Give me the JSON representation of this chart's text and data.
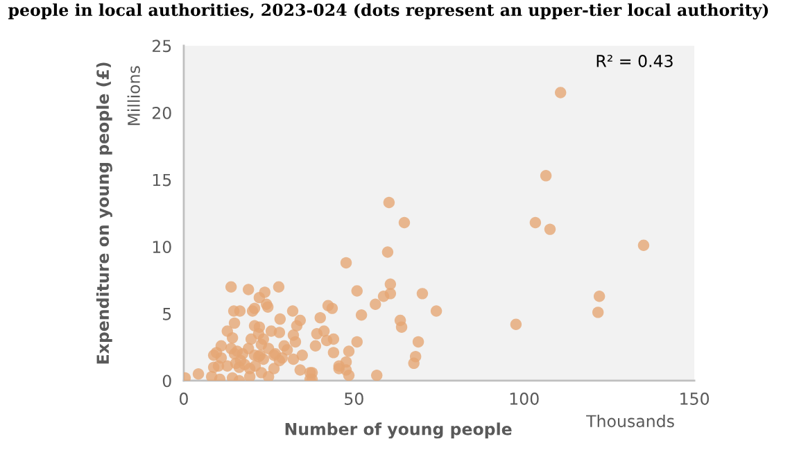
{
  "chart_data": {
    "type": "scatter",
    "title": "people in local authorities, 2023-024 (dots represent an upper-tier local authority)",
    "xlabel": "Number of young people",
    "ylabel": "Expenditure on young people (£)",
    "annotations": [
      "Thousands",
      "Millions",
      "R² = 0.43"
    ],
    "xlim": [
      0,
      150
    ],
    "xticks": [
      0,
      50,
      100,
      150
    ],
    "ylim": [
      0,
      25
    ],
    "yticks": [
      0,
      5,
      10,
      15,
      20,
      25
    ],
    "grid": false,
    "marker": "circle",
    "series": [
      {
        "color": "#e5a674",
        "x": [
          110.7,
          106.4,
          103.3,
          107.6,
          135.1,
          122.1,
          121.7,
          97.6,
          60.3,
          64.8,
          59.9,
          47.7,
          60.7,
          60.7,
          58.7,
          50.9,
          70.1,
          56.3,
          74.2,
          52.2,
          63.6,
          64.0,
          68.9,
          68.1,
          67.6,
          56.7,
          50.9,
          48.5,
          47.7,
          45.6,
          48.5,
          40.1,
          42.4,
          43.6,
          39.1,
          41.2,
          38.7,
          42.0,
          44.0,
          44.0,
          45.6,
          47.7,
          37.7,
          37.7,
          13.9,
          19.0,
          23.8,
          27.9,
          22.2,
          24.3,
          24.7,
          14.7,
          16.5,
          20.2,
          20.8,
          32.0,
          14.9,
          28.3,
          33.2,
          34.2,
          20.8,
          22.2,
          12.8,
          25.7,
          28.1,
          14.3,
          19.8,
          22.0,
          32.2,
          32.8,
          11.0,
          9.6,
          8.8,
          11.0,
          13.9,
          15.7,
          17.3,
          19.0,
          22.8,
          23.4,
          24.9,
          26.9,
          28.9,
          22.0,
          23.4,
          29.5,
          30.4,
          32.2,
          34.8,
          8.8,
          10.2,
          12.8,
          15.3,
          16.3,
          17.9,
          19.4,
          21.0,
          22.8,
          24.9,
          26.5,
          28.1,
          8.2,
          4.3,
          0.4,
          10.6,
          14.3,
          16.3,
          19.4,
          34.2,
          37.1,
          37.1,
          14.9,
          16.7,
          22.4,
          20.8,
          26.5
        ],
        "values": [
          21.5,
          15.3,
          11.8,
          11.3,
          10.1,
          6.3,
          5.1,
          4.2,
          13.3,
          11.8,
          9.6,
          8.8,
          7.2,
          6.5,
          6.3,
          6.7,
          6.5,
          5.7,
          5.2,
          4.9,
          4.5,
          4.0,
          2.9,
          1.8,
          1.3,
          0.4,
          2.9,
          2.2,
          1.4,
          0.9,
          0.4,
          4.7,
          5.6,
          5.4,
          3.5,
          3.7,
          2.6,
          3.0,
          3.1,
          2.1,
          1.1,
          0.8,
          0.6,
          0.1,
          7.0,
          6.8,
          6.6,
          7.0,
          6.2,
          5.7,
          5.5,
          5.2,
          5.2,
          5.2,
          5.4,
          5.2,
          4.3,
          4.6,
          4.1,
          4.5,
          4.1,
          4.0,
          3.7,
          3.7,
          3.6,
          3.2,
          3.1,
          3.5,
          3.4,
          2.9,
          2.6,
          2.1,
          1.9,
          1.7,
          2.4,
          2.2,
          2.0,
          2.4,
          2.7,
          3.1,
          2.4,
          2.0,
          1.7,
          1.8,
          1.6,
          2.6,
          2.3,
          1.6,
          1.9,
          1.0,
          1.1,
          1.1,
          1.3,
          1.0,
          1.2,
          0.9,
          1.1,
          0.6,
          0.3,
          0.9,
          1.5,
          0.3,
          0.5,
          0.2,
          0.1,
          0.2,
          0.0,
          0.3,
          0.8,
          0.6,
          0.1,
          2.0,
          1.5,
          1.9,
          1.9,
          1.9
        ]
      }
    ]
  }
}
